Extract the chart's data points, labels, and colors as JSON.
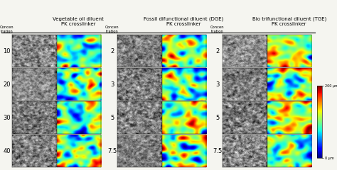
{
  "title_left": "Vegetable oil diluent\nPK crosslinker",
  "title_mid": "Fossil difunctional diluent (DGE)\nPK crosslinker",
  "title_right": "Bio trifunctional diluent (TGE)\nPK crosslinker",
  "col_labels_left": [
    "10",
    "20",
    "30",
    "40"
  ],
  "col_labels_mid": [
    "2",
    "3",
    "5",
    "7.5"
  ],
  "col_labels_right": [
    "2",
    "3",
    "5",
    "7.5"
  ],
  "conc_label": "Concen\ntration",
  "colorbar_label_top": "200 μm",
  "colorbar_label_bot": "0 μm",
  "bg_color": "#f5f5f0",
  "title_fontsize": 5.0,
  "label_fontsize": 5.0,
  "row_label_fontsize": 6.0,
  "conc_fontsize": 3.8
}
